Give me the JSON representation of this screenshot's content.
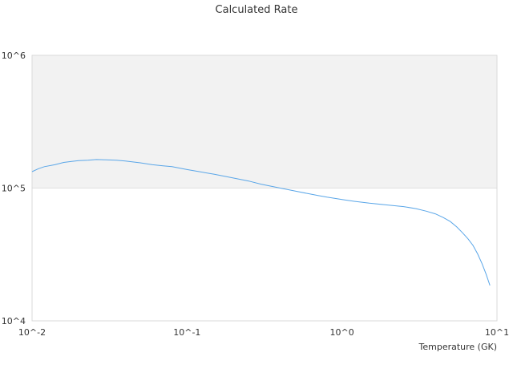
{
  "chart_data": {
    "type": "line",
    "title": "Calculated Rate",
    "xlabel": "Temperature (GK)",
    "ylabel": "",
    "x_scale": "log",
    "y_scale": "log",
    "xlim": [
      0.01,
      10
    ],
    "ylim": [
      10000,
      1000000
    ],
    "x_ticks": [
      "10^-2",
      "10^-1",
      "10^0",
      "10^1"
    ],
    "y_ticks": [
      "10^4",
      "10^5",
      "10^6"
    ],
    "y_band": {
      "from": 100000,
      "to": 1000000,
      "color": "#f2f2f2"
    },
    "grid": true,
    "legend": "none",
    "series": [
      {
        "color": "#5aa6e8",
        "points": [
          [
            0.01,
            133000
          ],
          [
            0.011,
            140000
          ],
          [
            0.012,
            145000
          ],
          [
            0.014,
            150000
          ],
          [
            0.016,
            156000
          ],
          [
            0.018,
            159000
          ],
          [
            0.02,
            161000
          ],
          [
            0.023,
            162000
          ],
          [
            0.026,
            164000
          ],
          [
            0.03,
            163500
          ],
          [
            0.035,
            162000
          ],
          [
            0.04,
            160000
          ],
          [
            0.05,
            155000
          ],
          [
            0.06,
            150000
          ],
          [
            0.07,
            147000
          ],
          [
            0.08,
            145000
          ],
          [
            0.1,
            138000
          ],
          [
            0.12,
            133000
          ],
          [
            0.15,
            127000
          ],
          [
            0.2,
            119000
          ],
          [
            0.25,
            113000
          ],
          [
            0.3,
            107000
          ],
          [
            0.4,
            100000
          ],
          [
            0.5,
            95000
          ],
          [
            0.6,
            91000
          ],
          [
            0.7,
            88000
          ],
          [
            0.8,
            85500
          ],
          [
            1.0,
            82000
          ],
          [
            1.2,
            79500
          ],
          [
            1.5,
            77000
          ],
          [
            2.0,
            74500
          ],
          [
            2.5,
            72500
          ],
          [
            3.0,
            70000
          ],
          [
            3.5,
            67000
          ],
          [
            4.0,
            64000
          ],
          [
            4.5,
            60000
          ],
          [
            5.0,
            56000
          ],
          [
            5.5,
            51000
          ],
          [
            6.0,
            46000
          ],
          [
            6.5,
            41500
          ],
          [
            7.0,
            37000
          ],
          [
            7.5,
            32000
          ],
          [
            8.0,
            27000
          ],
          [
            8.5,
            22500
          ],
          [
            9.0,
            18500
          ]
        ]
      }
    ]
  }
}
